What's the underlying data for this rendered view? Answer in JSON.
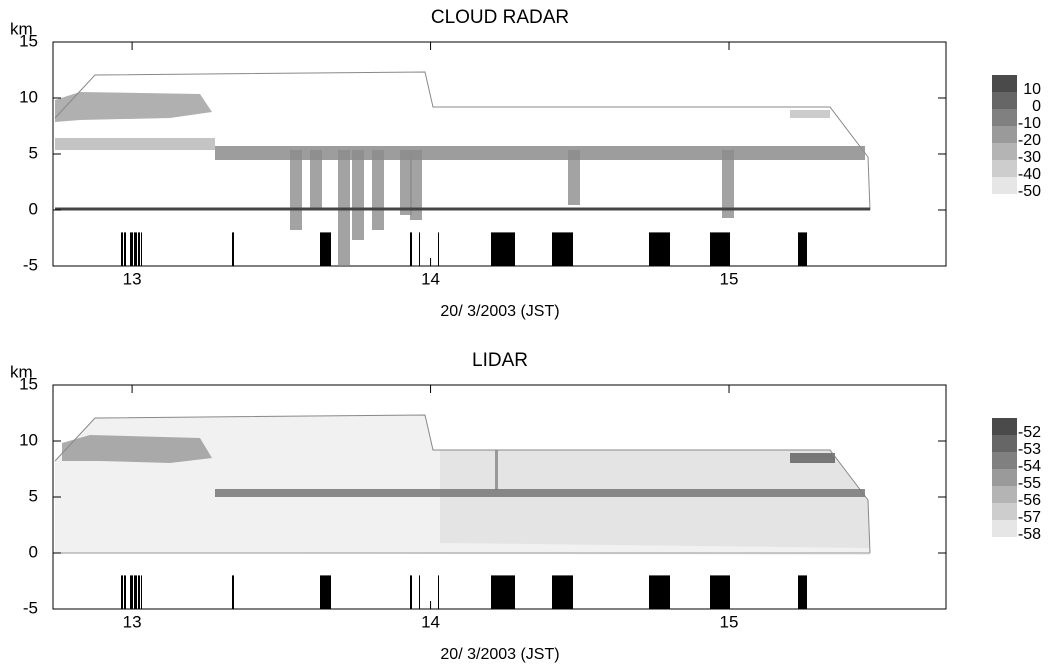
{
  "chart_data": [
    {
      "type": "heatmap",
      "title": "CLOUD RADAR",
      "y_label": "km",
      "x_label": "20/ 3/2003 (JST)",
      "xlim": [
        12.735,
        15.727
      ],
      "xticks": [
        13,
        14,
        15
      ],
      "ylim": [
        -5,
        15
      ],
      "yticks": [
        -5,
        0,
        5,
        10,
        15
      ],
      "colorbar": {
        "levels": [
          10,
          0,
          -10,
          -20,
          -30,
          -40,
          -50
        ],
        "colors": [
          "#4a4a4a",
          "#666666",
          "#808080",
          "#9a9a9a",
          "#b4b4b4",
          "#cdcdcd",
          "#e6e6e6"
        ]
      }
    },
    {
      "type": "heatmap",
      "title": "LIDAR",
      "y_label": "km",
      "x_label": "20/ 3/2003 (JST)",
      "xlim": [
        12.735,
        15.727
      ],
      "xticks": [
        13,
        14,
        15
      ],
      "ylim": [
        -5,
        15
      ],
      "yticks": [
        -5,
        0,
        5,
        10,
        15
      ],
      "colorbar": {
        "levels": [
          -52,
          -53,
          -54,
          -55,
          -56,
          -57,
          -58
        ],
        "colors": [
          "#4a4a4a",
          "#666666",
          "#808080",
          "#9a9a9a",
          "#b4b4b4",
          "#cdcdcd",
          "#e6e6e6"
        ]
      }
    }
  ]
}
